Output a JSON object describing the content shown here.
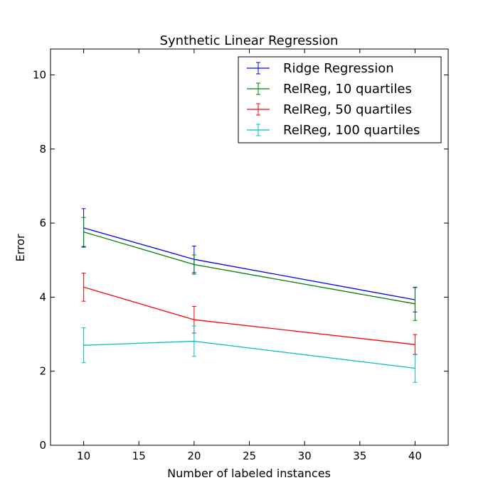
{
  "chart_data": {
    "type": "line",
    "title": "Synthetic Linear Regression",
    "xlabel": "Number of labeled instances",
    "ylabel": "Error",
    "xlim": [
      7,
      43
    ],
    "ylim": [
      0,
      10.7
    ],
    "xticks": [
      10,
      15,
      20,
      25,
      30,
      35,
      40
    ],
    "yticks": [
      0,
      2,
      4,
      6,
      8,
      10
    ],
    "grid": false,
    "legend_position": "top-right",
    "x": [
      10,
      20,
      40
    ],
    "series": [
      {
        "name": "Ridge Regression",
        "color": "#0000ff",
        "values": [
          5.87,
          5.02,
          3.93
        ],
        "errors": [
          0.52,
          0.36,
          0.33
        ]
      },
      {
        "name": "RelReg, 10 quartiles",
        "color": "#008000",
        "values": [
          5.76,
          4.88,
          3.82
        ],
        "errors": [
          0.39,
          0.26,
          0.45
        ]
      },
      {
        "name": "RelReg, 50 quartiles",
        "color": "#ff0000",
        "values": [
          4.27,
          3.39,
          2.72
        ],
        "errors": [
          0.38,
          0.36,
          0.27
        ]
      },
      {
        "name": "RelReg, 100 quartiles",
        "color": "#00bfbf",
        "values": [
          2.7,
          2.81,
          2.08
        ],
        "errors": [
          0.47,
          0.41,
          0.38
        ]
      }
    ]
  }
}
